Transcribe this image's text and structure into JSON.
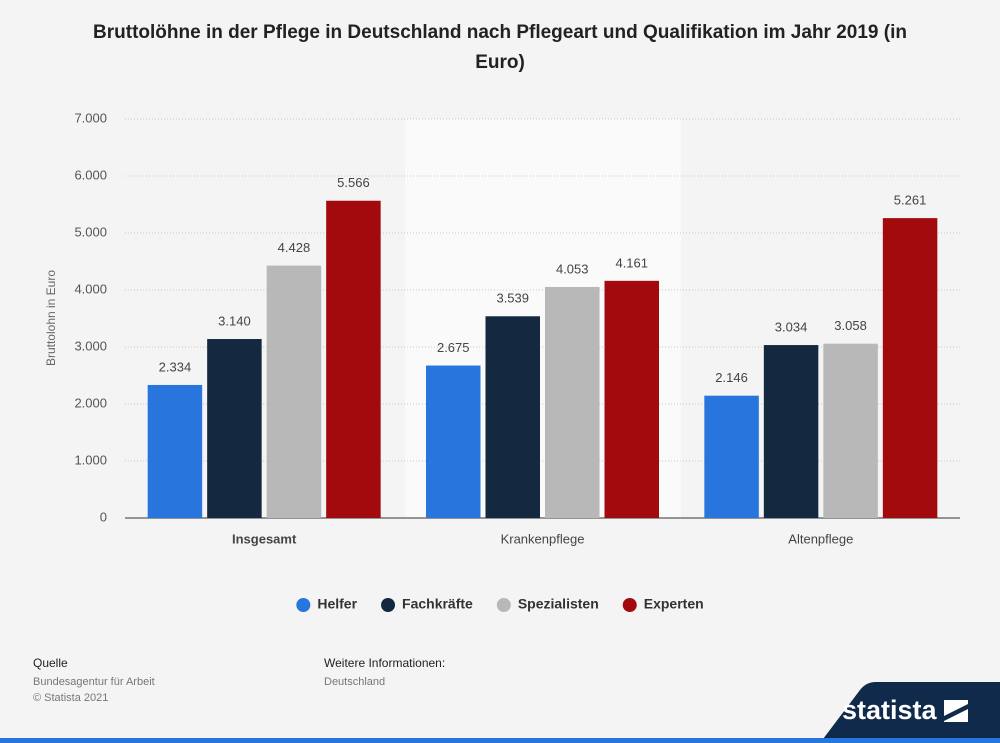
{
  "chart_data": {
    "type": "bar",
    "title": "Bruttolöhne in der Pflege in Deutschland nach Pflegeart und Qualifikation im Jahr 2019 (in Euro)",
    "y_label": "Bruttolohn in Euro",
    "categories": [
      "Insgesamt",
      "Krankenpflege",
      "Altenpflege"
    ],
    "series": [
      {
        "name": "Helfer",
        "color": "#2876dd",
        "values": [
          2334,
          2675,
          2146
        ],
        "value_labels": [
          "2.334",
          "2.675",
          "2.146"
        ]
      },
      {
        "name": "Fachkräfte",
        "color": "#14283f",
        "values": [
          3140,
          3539,
          3034
        ],
        "value_labels": [
          "3.140",
          "3.539",
          "3.034"
        ]
      },
      {
        "name": "Spezialisten",
        "color": "#b8b8b8",
        "values": [
          4428,
          4053,
          3058
        ],
        "value_labels": [
          "4.428",
          "4.053",
          "3.058"
        ]
      },
      {
        "name": "Experten",
        "color": "#a30a0d",
        "values": [
          5566,
          4161,
          5261
        ],
        "value_labels": [
          "5.566",
          "4.161",
          "5.261"
        ]
      }
    ],
    "ylim": [
      0,
      7000
    ],
    "yticks": [
      0,
      {
        "value": 1000,
        "label": "1.000"
      },
      {
        "value": 2000,
        "label": "2.000"
      },
      {
        "value": 3000,
        "label": "3.000"
      },
      {
        "value": 4000,
        "label": "4.000"
      },
      {
        "value": 5000,
        "label": "5.000"
      },
      {
        "value": 6000,
        "label": "6.000"
      },
      {
        "value": 7000,
        "label": "7.000"
      }
    ],
    "grid": true,
    "legend": "bottom"
  },
  "footer": {
    "source_heading": "Quelle",
    "source": "Bundesagentur für Arbeit",
    "copyright": "© Statista 2021",
    "info_heading": "Weitere Informationen:",
    "info": "Deutschland",
    "logo": "statista"
  }
}
